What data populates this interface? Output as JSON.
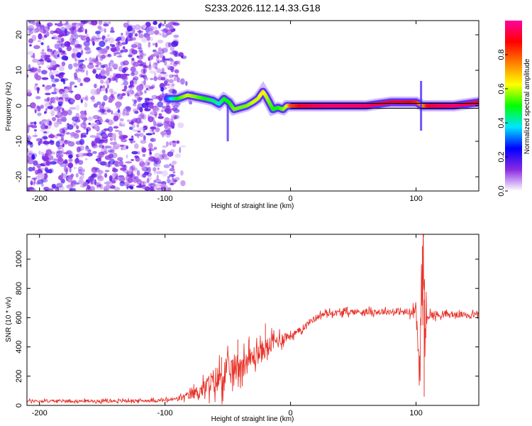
{
  "title": "S233.2026.112.14.33.G18",
  "chart_data": [
    {
      "type": "heatmap",
      "name": "spectrogram",
      "title": "S233.2026.112.14.33.G18",
      "xlabel": "Height of straight line (km)",
      "ylabel": "Frequency (Hz)",
      "xlim": [
        -210,
        150
      ],
      "ylim": [
        -24,
        24
      ],
      "xticks": [
        -200,
        -100,
        0,
        100
      ],
      "yticks": [
        -20,
        -10,
        0,
        10,
        20
      ],
      "colorbar": {
        "label": "Normalized spectral amplitude",
        "range": [
          0,
          1
        ],
        "ticks": [
          "0.0",
          "0.2",
          "0.4",
          "0.6",
          "0.8"
        ],
        "colors": [
          "#ffffff",
          "#8a2be2",
          "#0000ff",
          "#00e5ff",
          "#00ff00",
          "#ffff00",
          "#ff8000",
          "#ff0000",
          "#ff00a0"
        ]
      },
      "noise_region_x": [
        -210,
        -90
      ],
      "ridge": {
        "x": [
          -98,
          -90,
          -82,
          -75,
          -68,
          -62,
          -57,
          -53,
          -49,
          -45,
          -40,
          -35,
          -30,
          -26,
          -22,
          -20,
          -17,
          -14,
          -10,
          -6,
          -3,
          0,
          10,
          30,
          60,
          80,
          90,
          100,
          105,
          110,
          130,
          150
        ],
        "freq": [
          2,
          2,
          3,
          2.5,
          2,
          1.5,
          0.5,
          2,
          1,
          -1,
          -0.5,
          0,
          1,
          2,
          4,
          3,
          1,
          -1,
          -0.5,
          -1,
          0,
          0,
          0,
          0,
          0,
          1,
          1,
          1,
          0,
          0,
          0,
          1
        ],
        "amplitude": [
          0.3,
          0.5,
          0.6,
          0.55,
          0.5,
          0.45,
          0.4,
          0.5,
          0.5,
          0.55,
          0.55,
          0.55,
          0.6,
          0.6,
          0.65,
          0.6,
          0.55,
          0.5,
          0.5,
          0.55,
          0.6,
          0.8,
          0.9,
          0.95,
          0.95,
          0.9,
          0.9,
          0.85,
          0.7,
          0.9,
          0.95,
          0.9
        ]
      }
    },
    {
      "type": "line",
      "name": "snr",
      "xlabel": "Height of straight line (km)",
      "ylabel": "SNR (10 * v/v)",
      "xlim": [
        -210,
        150
      ],
      "ylim": [
        0,
        1170
      ],
      "xticks": [
        -200,
        -100,
        0,
        100
      ],
      "yticks": [
        0,
        200,
        400,
        600,
        800,
        1000
      ],
      "color": "#e8332a",
      "series": [
        {
          "name": "SNR",
          "x": [
            -210,
            -180,
            -150,
            -120,
            -100,
            -90,
            -80,
            -70,
            -62,
            -55,
            -50,
            -45,
            -40,
            -35,
            -30,
            -25,
            -20,
            -15,
            -10,
            -5,
            0,
            5,
            10,
            15,
            20,
            25,
            30,
            40,
            50,
            60,
            70,
            80,
            90,
            95,
            100,
            103,
            104,
            105,
            106,
            107,
            108,
            110,
            120,
            130,
            140,
            150
          ],
          "y": [
            30,
            30,
            30,
            32,
            35,
            45,
            70,
            110,
            160,
            200,
            230,
            250,
            280,
            300,
            330,
            360,
            390,
            420,
            445,
            465,
            480,
            495,
            530,
            570,
            600,
            620,
            630,
            635,
            640,
            640,
            640,
            640,
            640,
            630,
            640,
            200,
            700,
            900,
            1150,
            300,
            640,
            620,
            620,
            620,
            620,
            620
          ],
          "noise": [
            20,
            20,
            20,
            20,
            25,
            30,
            60,
            110,
            170,
            220,
            200,
            200,
            180,
            170,
            150,
            140,
            130,
            120,
            110,
            80,
            60,
            50,
            40,
            40,
            40,
            40,
            40,
            40,
            40,
            40,
            40,
            40,
            40,
            70,
            80,
            300,
            400,
            500,
            500,
            500,
            200,
            60,
            40,
            40,
            40,
            40
          ]
        }
      ],
      "spikes": [
        {
          "x": -55,
          "y": 330
        },
        {
          "x": -42,
          "y": 450
        },
        {
          "x": -33,
          "y": 470
        },
        {
          "x": -20,
          "y": 560
        },
        {
          "x": 105,
          "y": 1090
        },
        {
          "x": 106,
          "y": 1170
        },
        {
          "x": 106.5,
          "y": 60
        }
      ]
    }
  ]
}
